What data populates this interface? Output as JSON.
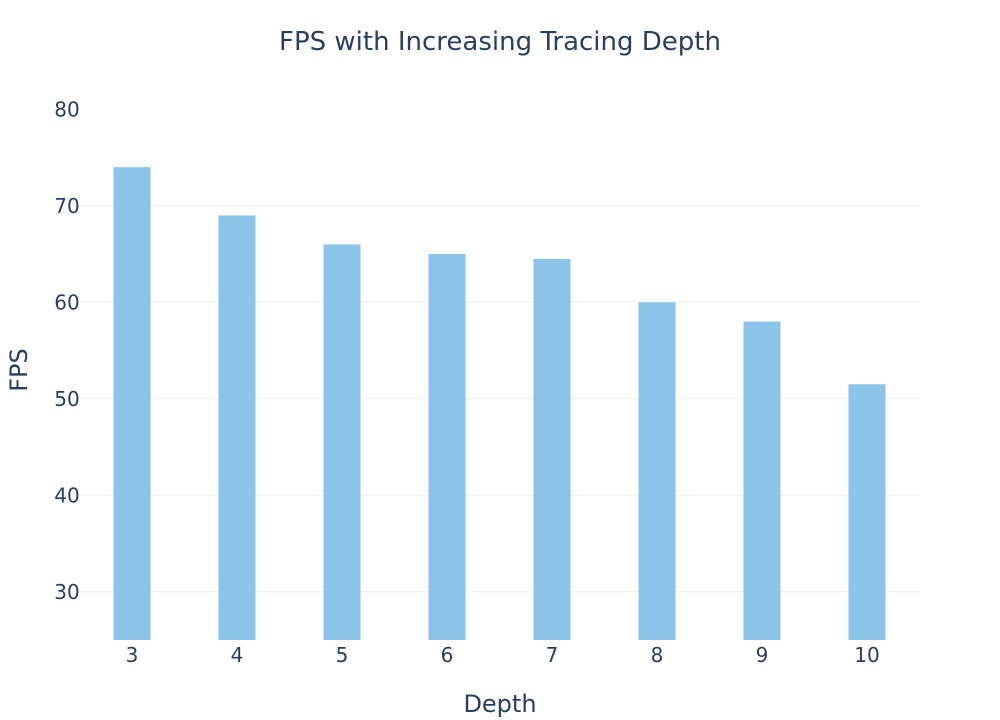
{
  "chart_data": {
    "type": "bar",
    "title": "FPS with Increasing Tracing Depth",
    "xlabel": "Depth",
    "ylabel": "FPS",
    "categories": [
      "3",
      "4",
      "5",
      "6",
      "7",
      "8",
      "9",
      "10"
    ],
    "values": [
      74,
      69,
      66,
      65,
      64.5,
      60,
      58,
      51.5
    ],
    "ylim": [
      25,
      82
    ],
    "yticks": [
      30,
      40,
      50,
      60,
      70,
      80
    ],
    "grid": true,
    "legend": "none",
    "colors": {
      "bar": "#8cc3e8",
      "text": "#2a3f5f",
      "grid": "#eeeeee",
      "background": "#ffffff"
    }
  }
}
